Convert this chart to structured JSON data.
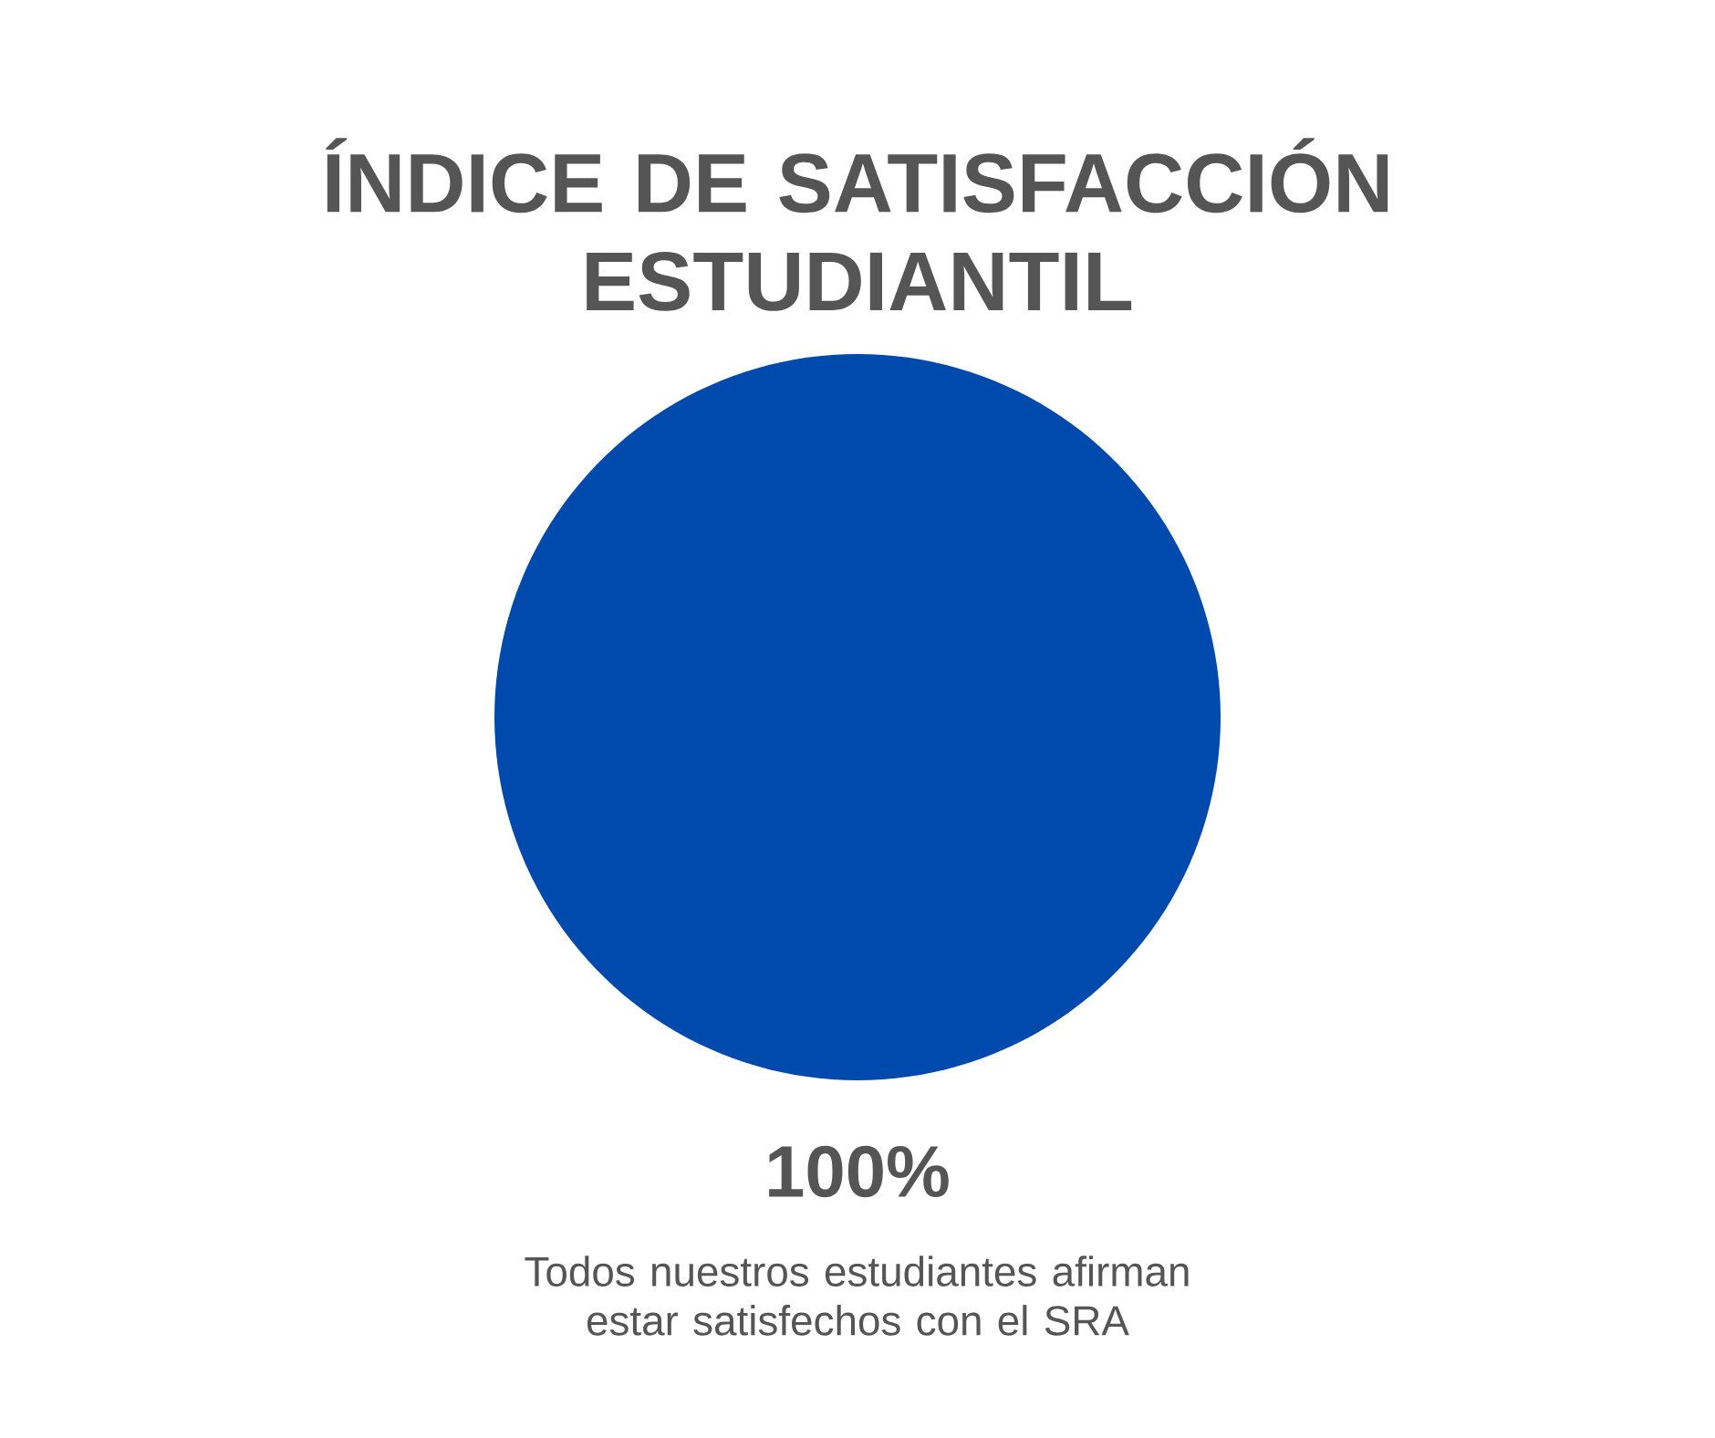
{
  "chart_data": {
    "type": "pie",
    "title": "ÍNDICE DE SATISFACCIÓN ESTUDIANTIL",
    "categories": [
      null
    ],
    "values": [
      100
    ],
    "colors": [
      "#004aad"
    ],
    "value_labels": [
      "100%"
    ],
    "annotations": [
      "Todos nuestros estudiantes afirman estar satisfechos con el SRA"
    ]
  }
}
